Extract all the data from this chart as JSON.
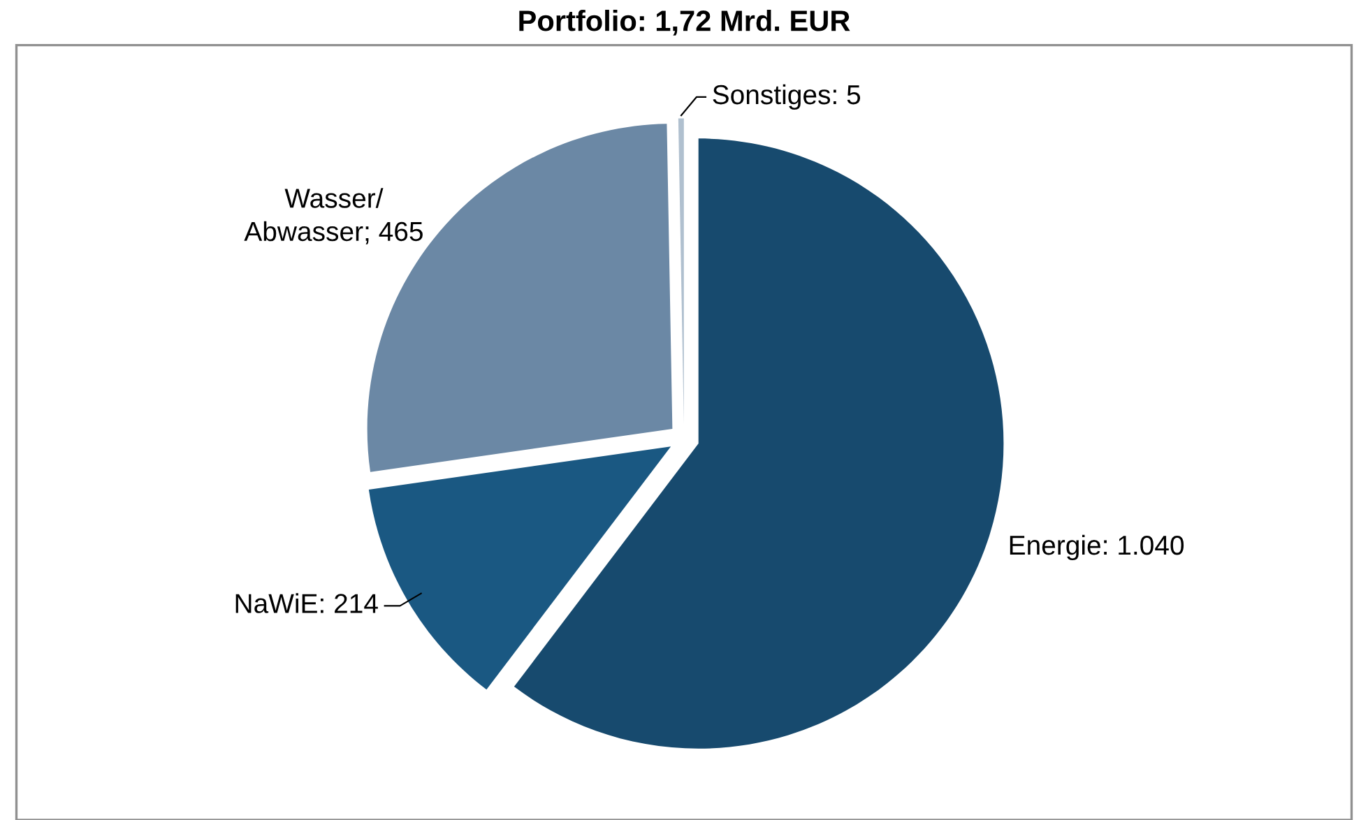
{
  "chart_data": {
    "type": "pie",
    "title": "Portfolio: 1,72 Mrd. EUR",
    "categories": [
      "Energie: 1.040",
      "NaWiE: 214",
      "Wasser/\nAbwasser; 465",
      "Sonstiges: 5"
    ],
    "values": [
      1040,
      214,
      465,
      5
    ],
    "colors": [
      "#174a6e",
      "#1a5882",
      "#6b88a5",
      "#b0c0cf"
    ],
    "legend": false
  }
}
